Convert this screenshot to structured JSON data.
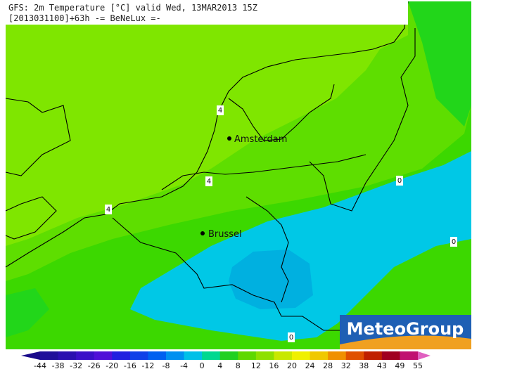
{
  "header": {
    "line1": "GFS: 2m Temperature [°C] valid Wed, 13MAR2013 15Z",
    "line2": "[2013031100]+63h -= BeNeLux =-"
  },
  "cities": [
    {
      "label": "Amsterdam"
    },
    {
      "label": "Brussel"
    }
  ],
  "contour_labels": [
    "4",
    "4",
    "4",
    "0",
    "0",
    "0"
  ],
  "logo": "MeteoGroup",
  "colorbar": {
    "labels": [
      -44,
      -38,
      -32,
      -26,
      -20,
      -16,
      -12,
      -8,
      -4,
      0,
      4,
      8,
      12,
      16,
      20,
      24,
      28,
      32,
      38,
      43,
      49,
      55
    ],
    "colors": [
      "#1a0a8a",
      "#20109a",
      "#2a10b0",
      "#3a10c8",
      "#5010d8",
      "#2020e0",
      "#1040e8",
      "#0060f0",
      "#0090f0",
      "#00c0e8",
      "#00d890",
      "#20d020",
      "#5ed800",
      "#8ee000",
      "#c8e800",
      "#f0f000",
      "#f0c800",
      "#f09000",
      "#e05000",
      "#c02000",
      "#a00020",
      "#c01070",
      "#e060c0"
    ]
  }
}
